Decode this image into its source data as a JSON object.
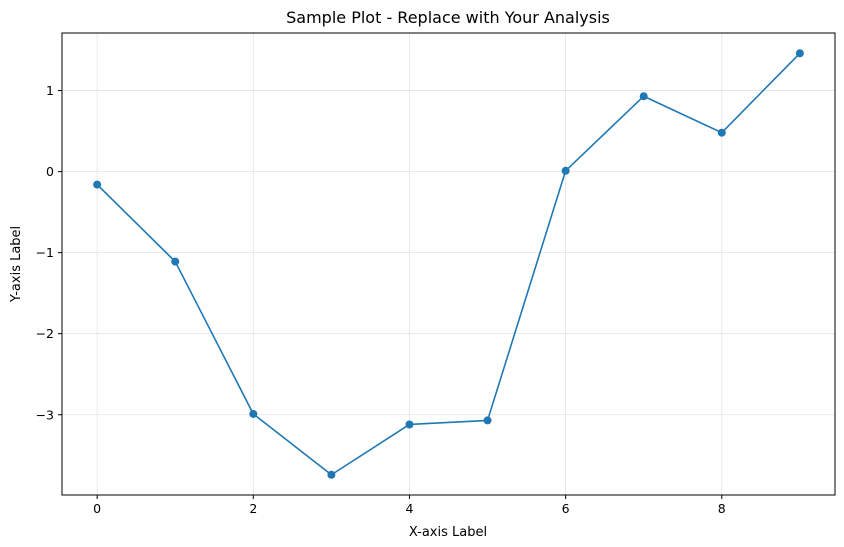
{
  "chart_data": {
    "type": "line",
    "title": "Sample Plot - Replace with Your Analysis",
    "xlabel": "X-axis Label",
    "ylabel": "Y-axis Label",
    "x": [
      0,
      1,
      2,
      3,
      4,
      5,
      6,
      7,
      8,
      9
    ],
    "series": [
      {
        "values": [
          -0.16,
          -1.11,
          -2.99,
          -3.74,
          -3.12,
          -3.07,
          0.01,
          0.93,
          0.48,
          1.46
        ],
        "color": "#1f77b4",
        "marker": "circle"
      }
    ],
    "xlim": [
      -0.45,
      9.45
    ],
    "ylim": [
      -3.99,
      1.71
    ],
    "xticks": [
      0,
      2,
      4,
      6,
      8
    ],
    "xtick_labels": [
      "0",
      "2",
      "4",
      "6",
      "8"
    ],
    "yticks": [
      1,
      0,
      -1,
      -2,
      -3
    ],
    "ytick_labels": [
      "1",
      "0",
      "−1",
      "−2",
      "−3"
    ],
    "grid": true
  }
}
